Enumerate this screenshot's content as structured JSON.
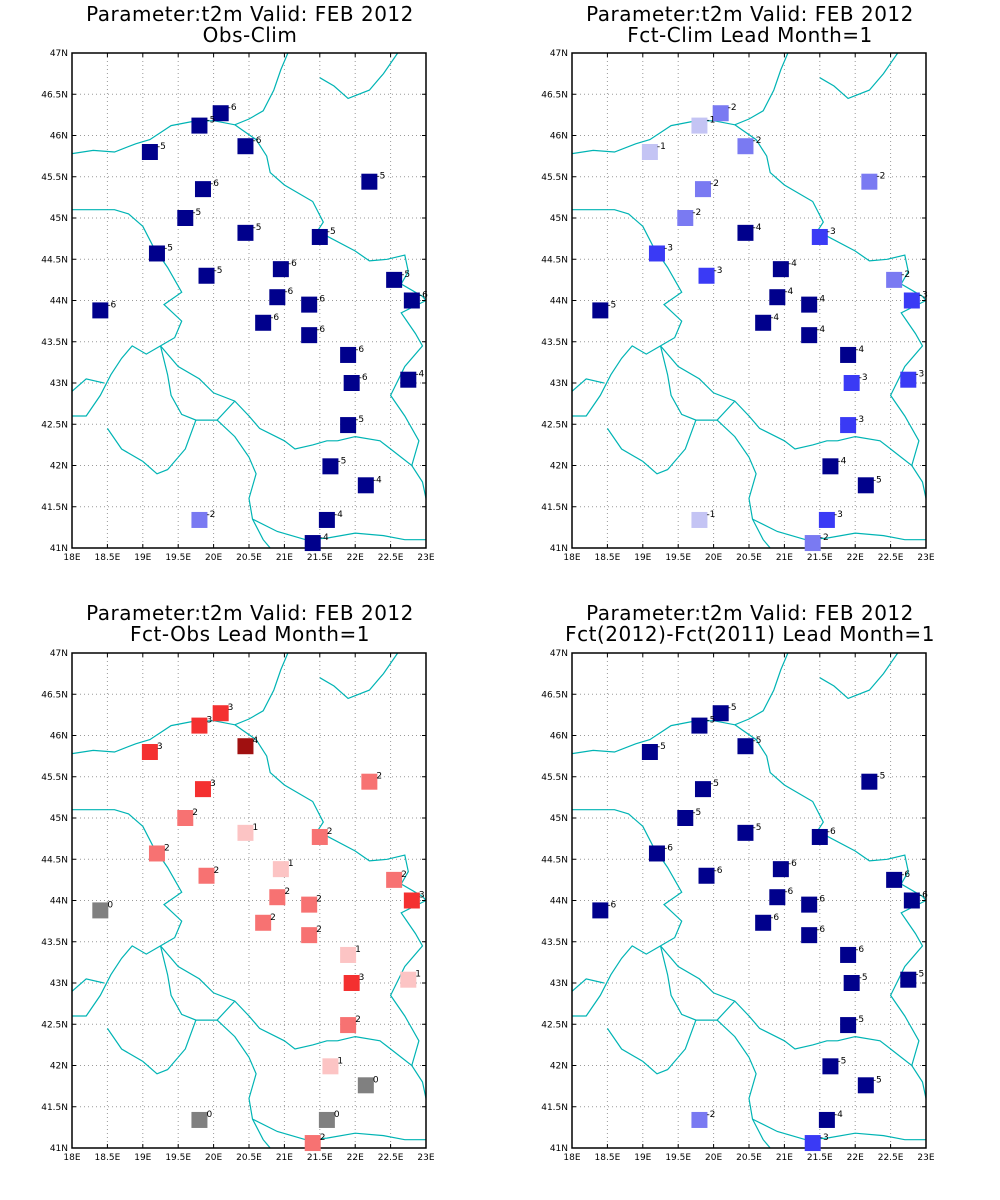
{
  "colors": {
    "border": "#00b4b4",
    "grid": "#9a9a9a",
    "frame": "#000000"
  },
  "axes": {
    "lon_min": 18,
    "lon_max": 23,
    "lat_min": 41,
    "lat_max": 47,
    "x_ticks": [
      "18E",
      "18.5E",
      "19E",
      "19.5E",
      "20E",
      "20.5E",
      "21E",
      "21.5E",
      "22E",
      "22.5E",
      "23E"
    ],
    "y_ticks": [
      "41N",
      "41.5N",
      "42N",
      "42.5N",
      "43N",
      "43.5N",
      "44N",
      "44.5N",
      "45N",
      "45.5N",
      "46N",
      "46.5N",
      "47N"
    ]
  },
  "color_scale": {
    "-6": "#00008c",
    "-5": "#00008c",
    "-4": "#00008c",
    "-3": "#3a3af5",
    "-2": "#7a7af2",
    "-1": "#c4c4f4",
    "0": "#808080",
    "1": "#fcc4c4",
    "2": "#f77272",
    "3": "#f43030",
    "4": "#a01010"
  },
  "stations": [
    [
      20.1,
      46.27
    ],
    [
      19.8,
      46.12
    ],
    [
      19.1,
      45.8
    ],
    [
      20.45,
      45.87
    ],
    [
      22.2,
      45.44
    ],
    [
      19.85,
      45.35
    ],
    [
      19.6,
      45.0
    ],
    [
      20.45,
      44.82
    ],
    [
      21.5,
      44.77
    ],
    [
      19.2,
      44.57
    ],
    [
      20.95,
      44.38
    ],
    [
      19.9,
      44.3
    ],
    [
      22.55,
      44.25
    ],
    [
      20.9,
      44.04
    ],
    [
      21.35,
      43.95
    ],
    [
      22.8,
      44.0
    ],
    [
      18.4,
      43.88
    ],
    [
      20.7,
      43.73
    ],
    [
      21.35,
      43.58
    ],
    [
      21.9,
      43.34
    ],
    [
      21.95,
      43.0
    ],
    [
      22.75,
      43.04
    ],
    [
      21.9,
      42.49
    ],
    [
      21.65,
      41.99
    ],
    [
      22.15,
      41.76
    ],
    [
      19.8,
      41.34
    ],
    [
      21.6,
      41.34
    ],
    [
      21.4,
      41.06
    ]
  ],
  "panels": [
    {
      "title_line1": "Parameter:t2m Valid: FEB 2012",
      "title_line2": "Obs-Clim",
      "values": [
        -6,
        -5,
        -5,
        -6,
        -5,
        -6,
        -5,
        -5,
        -5,
        -5,
        -6,
        -5,
        -5,
        -6,
        -6,
        -6,
        -6,
        -6,
        -6,
        -6,
        -6,
        -4,
        -5,
        -5,
        -4,
        -2,
        -4,
        -4
      ]
    },
    {
      "title_line1": "Parameter:t2m Valid: FEB 2012",
      "title_line2": "Fct-Clim Lead Month=1",
      "values": [
        -2,
        -1,
        -1,
        -2,
        -2,
        -2,
        -2,
        -4,
        -3,
        -3,
        -4,
        -3,
        -2,
        -4,
        -4,
        -3,
        -5,
        -4,
        -4,
        -4,
        -3,
        -3,
        -3,
        -4,
        -5,
        -1,
        -3,
        -2
      ]
    },
    {
      "title_line1": "Parameter:t2m Valid: FEB 2012",
      "title_line2": "Fct-Obs Lead Month=1",
      "values": [
        3,
        3,
        3,
        4,
        2,
        3,
        2,
        1,
        2,
        2,
        1,
        2,
        2,
        2,
        2,
        3,
        0,
        2,
        2,
        1,
        3,
        1,
        2,
        1,
        0,
        0,
        0,
        2
      ]
    },
    {
      "title_line1": "Parameter:t2m Valid: FEB 2012",
      "title_line2": "Fct(2012)-Fct(2011) Lead Month=1",
      "values": [
        -5,
        -5,
        -5,
        -5,
        -5,
        -5,
        -5,
        -5,
        -6,
        -6,
        -6,
        -6,
        -6,
        -6,
        -6,
        -6,
        -6,
        -6,
        -6,
        -6,
        -5,
        -5,
        -5,
        -5,
        -5,
        -2,
        -4,
        -3
      ]
    }
  ]
}
